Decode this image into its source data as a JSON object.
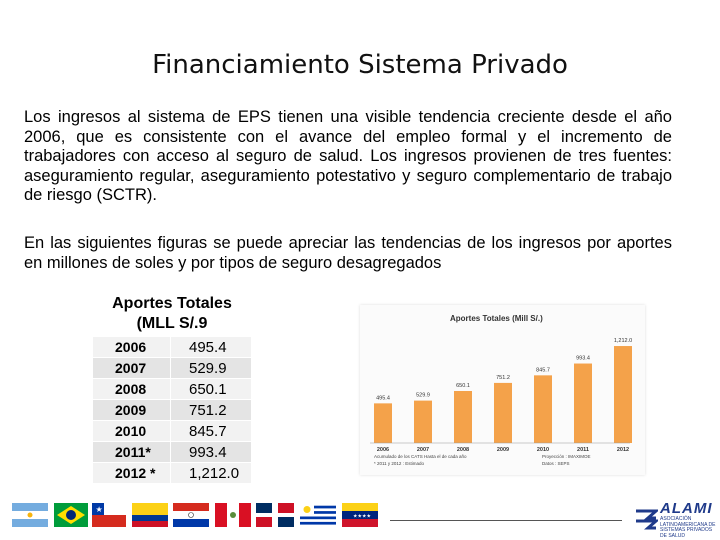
{
  "title": "Financiamiento Sistema Privado",
  "paragraph1": "Los ingresos al sistema de EPS tienen una visible tendencia creciente desde el año 2006, que es consistente con el avance del empleo formal y el incremento de trabajadores con acceso al seguro de salud. Los ingresos provienen de tres fuentes: aseguramiento regular, aseguramiento potestativo y seguro complementario de trabajo de riesgo (SCTR).",
  "paragraph2": "En las siguientes figuras se puede apreciar las tendencias de los ingresos por aportes en millones de soles y por tipos de seguro desagregados",
  "table": {
    "header": "Aportes Totales (MLL S/.9",
    "rows": [
      {
        "year": "2006",
        "value": "495.4"
      },
      {
        "year": "2007",
        "value": "529.9"
      },
      {
        "year": "2008",
        "value": "650.1"
      },
      {
        "year": "2009",
        "value": "751.2"
      },
      {
        "year": "2010",
        "value": "845.7"
      },
      {
        "year": "2011*",
        "value": "993.4"
      },
      {
        "year": "2012 *",
        "value": "1,212.0"
      }
    ]
  },
  "chart_data": {
    "type": "bar",
    "title": "Aportes Totales (Mill S/.)",
    "categories": [
      "2006",
      "2007",
      "2008",
      "2009",
      "2010",
      "2011",
      "2012"
    ],
    "values": [
      495.4,
      529.9,
      650.1,
      751.2,
      845.7,
      993.4,
      1212.0
    ],
    "data_labels": [
      "495.4",
      "529.9",
      "650.1",
      "751.2",
      "845.7",
      "993.4",
      "1,212.0"
    ],
    "ylim": [
      0,
      1300
    ],
    "grid": false,
    "bar_color": "#f4a24a",
    "footnote_left_1": "Acumulado de los CATS Hasta el de cada año",
    "footnote_left_2": "* 2011 y 2012 : Estimado",
    "footnote_right_1": "Proyección : IMAXIMOE",
    "footnote_right_2": "Datos : SEPS"
  },
  "footer": {
    "flags": [
      "argentina-flag",
      "brazil-flag",
      "chile-flag",
      "colombia-flag",
      "paraguay-flag",
      "peru-flag",
      "dominican-republic-flag",
      "uruguay-flag",
      "venezuela-flag"
    ],
    "logo_text": "ALAMI",
    "logo_subtext": "ASOCIACIÓN LATINOAMERICANA DE SISTEMAS PRIVADOS DE SALUD"
  }
}
